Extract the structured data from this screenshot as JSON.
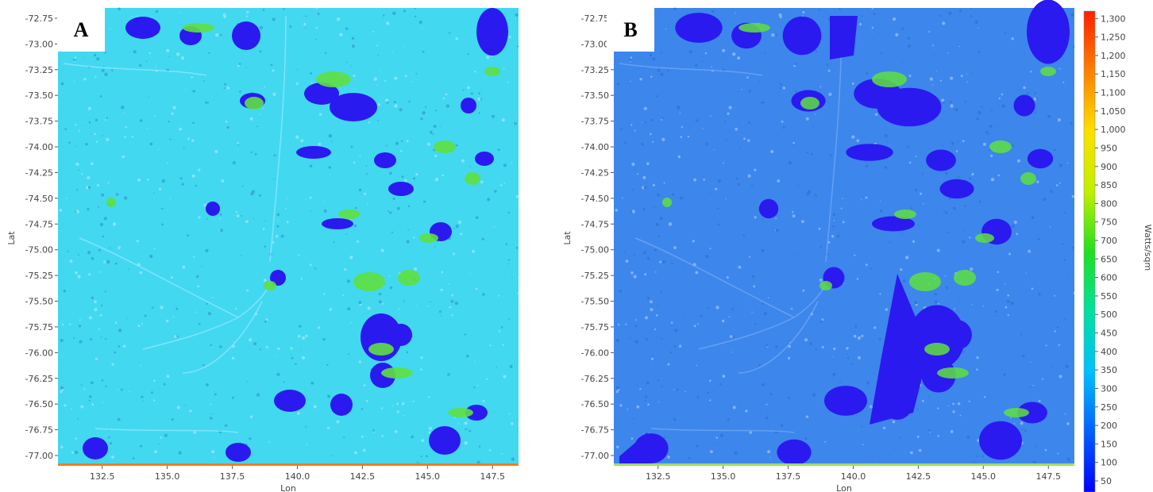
{
  "panels": [
    {
      "label": "A",
      "base_color": "#42d8f0",
      "x_axis_label": "Lon",
      "y_axis_label": "Lat"
    },
    {
      "label": "B",
      "base_color": "#3d86ec",
      "x_axis_label": "Lon",
      "y_axis_label": "Lat"
    }
  ],
  "axes": {
    "lat_ticks": [
      "-72.75",
      "-73.00",
      "-73.25",
      "-73.50",
      "-73.75",
      "-74.00",
      "-74.25",
      "-74.50",
      "-74.75",
      "-75.00",
      "-75.25",
      "-75.50",
      "-75.75",
      "-76.00",
      "-76.25",
      "-76.50",
      "-76.75",
      "-77.00"
    ],
    "lon_ticks": [
      "132.5",
      "135.0",
      "137.5",
      "140.0",
      "142.5",
      "145.0",
      "147.5"
    ],
    "lat_range": [
      -77.1,
      -72.65
    ],
    "lon_range": [
      130.8,
      148.5
    ]
  },
  "colorbar": {
    "title": "Watts/sqm",
    "range": [
      20,
      1320
    ],
    "ticks": [
      "1,300",
      "1,250",
      "1,200",
      "1,150",
      "1,100",
      "1,050",
      "1,000",
      "950",
      "900",
      "850",
      "800",
      "750",
      "700",
      "650",
      "600",
      "550",
      "500",
      "450",
      "400",
      "350",
      "300",
      "250",
      "200",
      "150",
      "100",
      "50"
    ],
    "colors": [
      "#0000ff",
      "#0060ff",
      "#00c0ff",
      "#00e0a0",
      "#20e020",
      "#c0f000",
      "#ffe000",
      "#ff8000",
      "#ff2000"
    ]
  },
  "features": {
    "shadow_color": "#2a1af0",
    "highlight_color": "#5fe040"
  }
}
